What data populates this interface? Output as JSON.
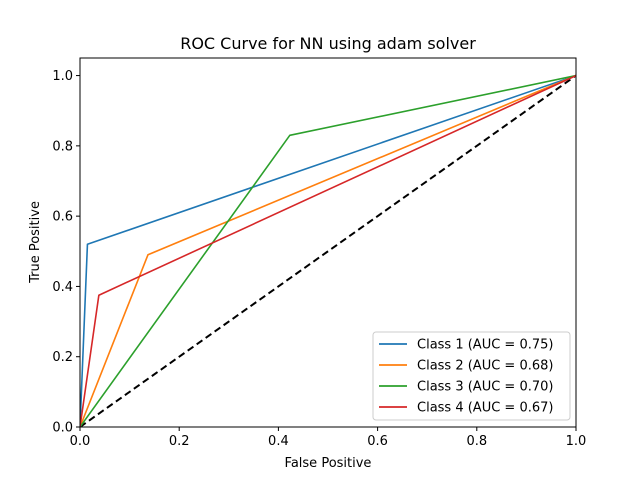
{
  "chart_data": {
    "type": "line",
    "title": "ROC Curve for NN using adam solver",
    "xlabel": "False Positive",
    "ylabel": "True Positive",
    "xlim": [
      0.0,
      1.0
    ],
    "ylim": [
      0.0,
      1.05
    ],
    "xticks": [
      0.0,
      0.2,
      0.4,
      0.6,
      0.8,
      1.0
    ],
    "yticks": [
      0.0,
      0.2,
      0.4,
      0.6,
      0.8,
      1.0
    ],
    "xtick_labels": [
      "0.0",
      "0.2",
      "0.4",
      "0.6",
      "0.8",
      "1.0"
    ],
    "ytick_labels": [
      "0.0",
      "0.2",
      "0.4",
      "0.6",
      "0.8",
      "1.0"
    ],
    "grid": false,
    "legend_position": "bottom-right",
    "series": [
      {
        "name": "Class 1 (AUC = 0.75)",
        "color": "#1f77b4",
        "x": [
          0.0,
          0.015,
          1.0
        ],
        "y": [
          0.0,
          0.52,
          1.0
        ]
      },
      {
        "name": "Class 2 (AUC = 0.68)",
        "color": "#ff7f0e",
        "x": [
          0.0,
          0.137,
          1.0
        ],
        "y": [
          0.0,
          0.49,
          1.0
        ]
      },
      {
        "name": "Class 3 (AUC = 0.70)",
        "color": "#2ca02c",
        "x": [
          0.0,
          0.423,
          1.0
        ],
        "y": [
          0.0,
          0.83,
          1.0
        ]
      },
      {
        "name": "Class 4 (AUC = 0.67)",
        "color": "#d62728",
        "x": [
          0.0,
          0.038,
          1.0
        ],
        "y": [
          0.0,
          0.375,
          1.0
        ]
      }
    ],
    "reference_line": {
      "style": "dashed",
      "color": "#000000",
      "x": [
        0.0,
        1.0
      ],
      "y": [
        0.0,
        1.0
      ]
    }
  }
}
